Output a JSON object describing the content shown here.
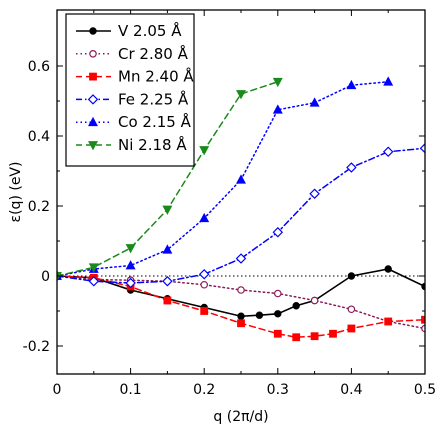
{
  "chart_data": {
    "type": "line",
    "xlabel": "q (2π/d)",
    "ylabel": "ε(q) (eV)",
    "xlim": [
      0,
      0.5
    ],
    "ylim": [
      -0.28,
      0.76
    ],
    "xticks": [
      0,
      0.1,
      0.2,
      0.3,
      0.4,
      0.5
    ],
    "xtick_labels": [
      "0",
      "0.1",
      "0.2",
      "0.3",
      "0.4",
      "0.5"
    ],
    "yticks": [
      -0.2,
      0,
      0.2,
      0.4,
      0.6
    ],
    "ytick_labels": [
      "-0.2",
      "0",
      "0.2",
      "0.4",
      "0.6"
    ],
    "grid": false,
    "legend_position": "top-left",
    "reference_line_y": 0,
    "series": [
      {
        "name": "V 2.05 Å",
        "color": "#000000",
        "marker": "filled-circle",
        "line_style": "solid",
        "x": [
          0,
          0.05,
          0.1,
          0.15,
          0.2,
          0.25,
          0.275,
          0.3,
          0.325,
          0.35,
          0.4,
          0.45,
          0.5
        ],
        "y": [
          0,
          -0.005,
          -0.04,
          -0.065,
          -0.09,
          -0.115,
          -0.112,
          -0.108,
          -0.085,
          -0.07,
          0.0,
          0.02,
          -0.03
        ]
      },
      {
        "name": "Cr 2.80 Å",
        "color": "#8b1a5a",
        "marker": "open-circle",
        "line_style": "dotted",
        "x": [
          0,
          0.05,
          0.1,
          0.15,
          0.2,
          0.25,
          0.3,
          0.35,
          0.4,
          0.45,
          0.5
        ],
        "y": [
          0,
          -0.01,
          -0.012,
          -0.015,
          -0.025,
          -0.04,
          -0.05,
          -0.07,
          -0.095,
          -0.13,
          -0.15
        ]
      },
      {
        "name": "Mn 2.40 Å",
        "color": "#ff0000",
        "marker": "filled-square",
        "line_style": "dashed",
        "x": [
          0,
          0.05,
          0.1,
          0.15,
          0.2,
          0.25,
          0.3,
          0.325,
          0.35,
          0.375,
          0.4,
          0.45,
          0.5
        ],
        "y": [
          0,
          -0.005,
          -0.03,
          -0.07,
          -0.1,
          -0.135,
          -0.165,
          -0.175,
          -0.172,
          -0.165,
          -0.15,
          -0.13,
          -0.125
        ]
      },
      {
        "name": "Fe 2.25 Å",
        "color": "#0000ff",
        "marker": "open-diamond",
        "line_style": "dash-dot",
        "x": [
          0,
          0.05,
          0.1,
          0.15,
          0.2,
          0.25,
          0.3,
          0.35,
          0.4,
          0.45,
          0.5
        ],
        "y": [
          0,
          -0.015,
          -0.02,
          -0.015,
          0.005,
          0.05,
          0.125,
          0.235,
          0.31,
          0.355,
          0.365
        ]
      },
      {
        "name": "Co 2.15 Å",
        "color": "#0000ff",
        "marker": "filled-triangle-up",
        "line_style": "dotted",
        "x": [
          0,
          0.05,
          0.1,
          0.15,
          0.2,
          0.25,
          0.3,
          0.35,
          0.4,
          0.45
        ],
        "y": [
          0,
          0.02,
          0.03,
          0.075,
          0.165,
          0.275,
          0.475,
          0.495,
          0.545,
          0.555
        ]
      },
      {
        "name": "Ni 2.18 Å",
        "color": "#1a8a1a",
        "marker": "filled-triangle-down",
        "line_style": "dashed",
        "x": [
          0,
          0.05,
          0.1,
          0.15,
          0.2,
          0.25,
          0.3
        ],
        "y": [
          0,
          0.025,
          0.08,
          0.19,
          0.36,
          0.52,
          0.555
        ]
      }
    ]
  }
}
